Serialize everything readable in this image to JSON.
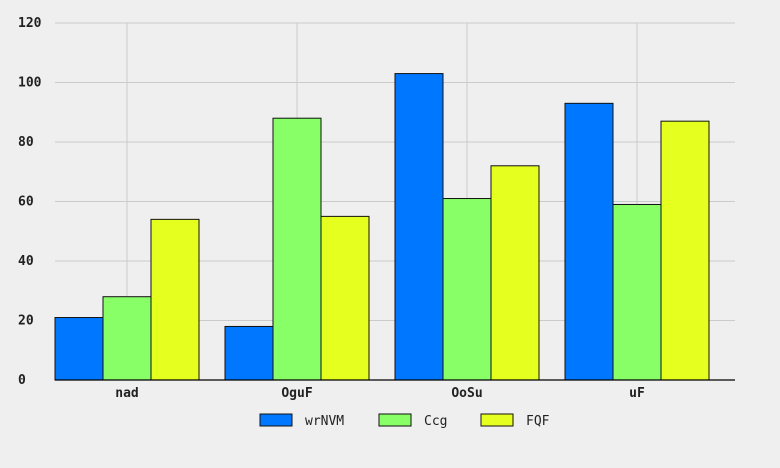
{
  "chart_data": {
    "type": "bar",
    "categories": [
      "nad",
      "OguF",
      "OoSu",
      "uF"
    ],
    "series": [
      {
        "name": "wrNVM",
        "values": [
          21,
          18,
          103,
          93
        ],
        "color": "#0077ff"
      },
      {
        "name": "Ccg",
        "values": [
          28,
          88,
          61,
          59
        ],
        "color": "#88ff66"
      },
      {
        "name": "FQF",
        "values": [
          54,
          55,
          72,
          87
        ],
        "color": "#e5ff1f"
      }
    ],
    "title": "",
    "xlabel": "",
    "ylabel": "",
    "ylim": [
      0,
      120
    ],
    "yticks": [
      0,
      20,
      40,
      60,
      80,
      100,
      120
    ],
    "grid": true,
    "legend": "bottom-center",
    "colors": {
      "background": "#efefef",
      "grid": "#cbcbcb",
      "bar_edge": "#111111"
    }
  }
}
